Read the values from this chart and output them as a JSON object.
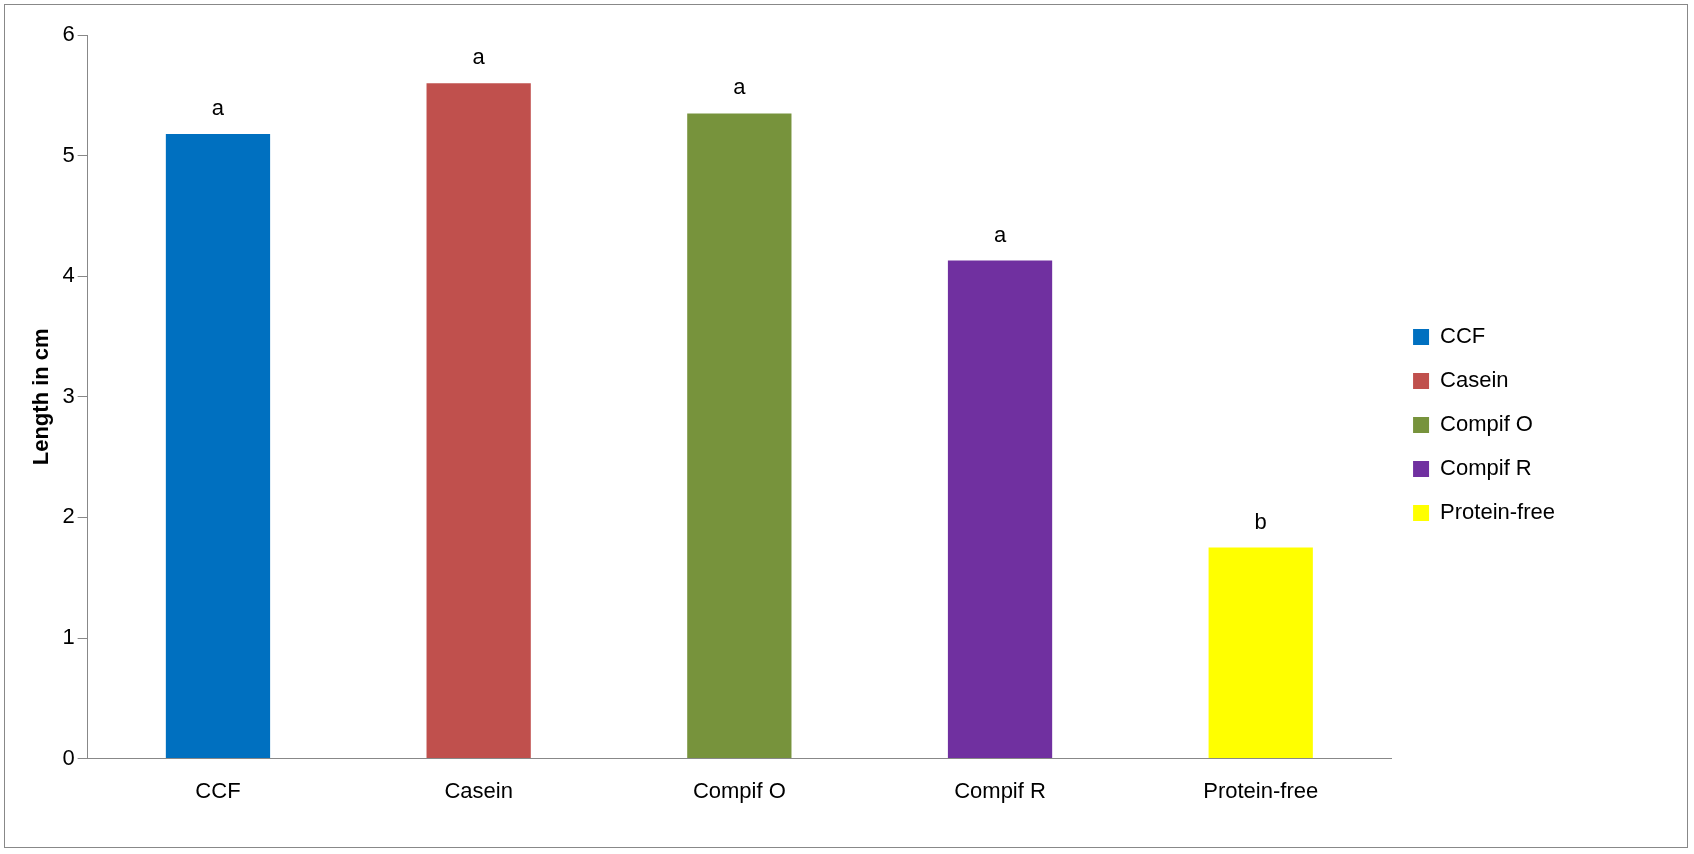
{
  "chart_data": {
    "type": "bar",
    "ylabel": "Length in cm",
    "categories": [
      "CCF",
      "Casein",
      "Compif O",
      "Compif R",
      "Protein-free"
    ],
    "series": [
      {
        "name": "CCF",
        "color": "#0070c0",
        "values": [
          5.18,
          null,
          null,
          null,
          null
        ]
      },
      {
        "name": "Casein",
        "color": "#c0504d",
        "values": [
          null,
          5.6,
          null,
          null,
          null
        ]
      },
      {
        "name": "Compif O",
        "color": "#77933c",
        "values": [
          null,
          null,
          5.35,
          null,
          null
        ]
      },
      {
        "name": "Compif R",
        "color": "#7030a0",
        "values": [
          null,
          null,
          null,
          4.13,
          null
        ]
      },
      {
        "name": "Protein-free",
        "color": "#ffff00",
        "values": [
          null,
          null,
          null,
          null,
          1.75
        ]
      }
    ],
    "ylim": [
      0,
      6
    ],
    "yticks": [
      0,
      1,
      2,
      3,
      4,
      5,
      6
    ],
    "grid": false,
    "legend": "right",
    "annotations": [
      {
        "text": "a",
        "x": "CCF",
        "y": 5.18
      },
      {
        "text": "a",
        "x": "Casein",
        "y": 5.6
      },
      {
        "text": "a",
        "x": "Compif O",
        "y": 5.35
      },
      {
        "text": "a",
        "x": "Compif R",
        "y": 4.13
      },
      {
        "text": "b",
        "x": "Protein-free",
        "y": 1.75
      }
    ]
  }
}
